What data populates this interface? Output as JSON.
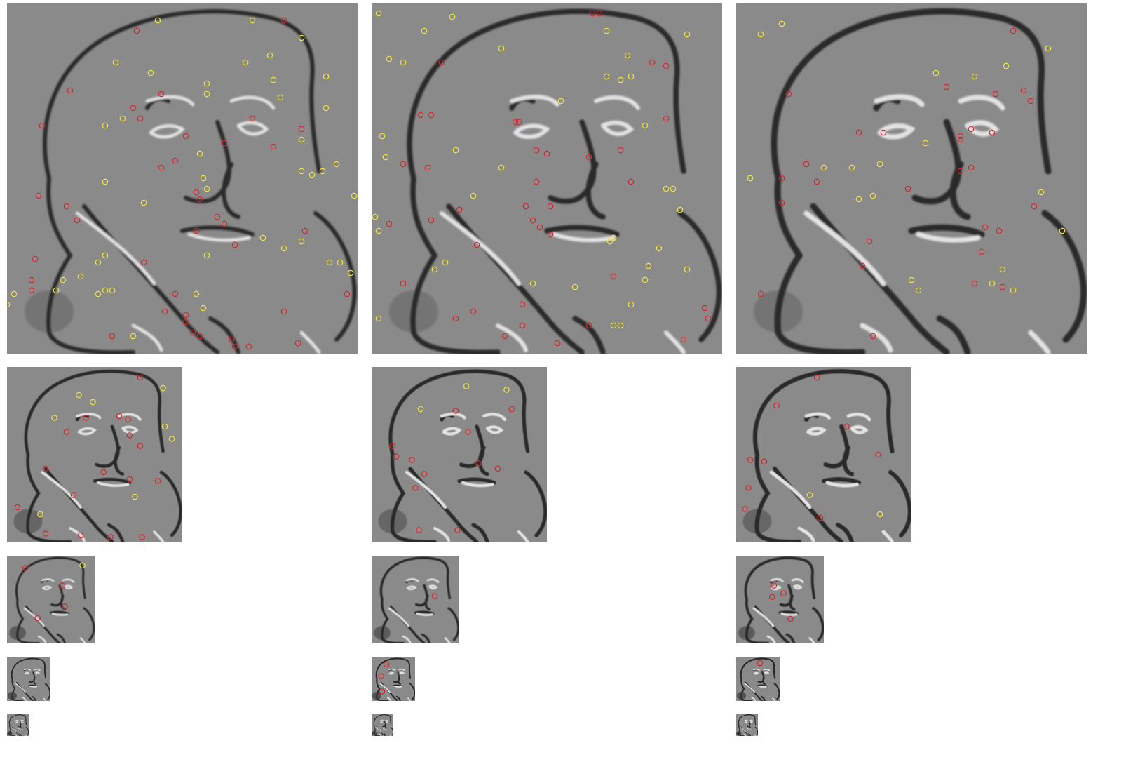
{
  "colors": {
    "background": "#ffffff",
    "tile_gray": "#8a8a8a",
    "edge_dark": "#2a2a2a",
    "edge_light": "#e2e2e2",
    "keypoint_max": "#f2e63a",
    "keypoint_min": "#d8262a"
  },
  "pyramid": {
    "columns": 3,
    "octaves": 5,
    "scale_factor_per_octave": 0.5
  },
  "keypoints": {
    "description_note": "",
    "c0o0": {
      "yellow": [
        [
          0.43,
          0.05
        ],
        [
          0.7,
          0.05
        ],
        [
          0.84,
          0.1
        ],
        [
          0.31,
          0.17
        ],
        [
          0.68,
          0.17
        ],
        [
          0.75,
          0.15
        ],
        [
          0.41,
          0.2
        ],
        [
          0.57,
          0.23
        ],
        [
          0.76,
          0.22
        ],
        [
          0.57,
          0.26
        ],
        [
          0.78,
          0.27
        ],
        [
          0.91,
          0.21
        ],
        [
          0.28,
          0.35
        ],
        [
          0.33,
          0.33
        ],
        [
          0.91,
          0.3
        ],
        [
          0.84,
          0.39
        ],
        [
          0.55,
          0.43
        ],
        [
          0.84,
          0.48
        ],
        [
          0.87,
          0.49
        ],
        [
          0.9,
          0.48
        ],
        [
          0.94,
          0.46
        ],
        [
          0.56,
          0.5
        ],
        [
          0.28,
          0.51
        ],
        [
          0.57,
          0.53
        ],
        [
          0.39,
          0.57
        ],
        [
          0.99,
          0.55
        ],
        [
          0.73,
          0.67
        ],
        [
          0.79,
          0.7
        ],
        [
          0.84,
          0.68
        ],
        [
          0.57,
          0.72
        ],
        [
          0.26,
          0.74
        ],
        [
          0.28,
          0.72
        ],
        [
          0.92,
          0.74
        ],
        [
          0.95,
          0.74
        ],
        [
          0.98,
          0.77
        ],
        [
          0.16,
          0.79
        ],
        [
          0.21,
          0.78
        ],
        [
          0.14,
          0.82
        ],
        [
          0.26,
          0.83
        ],
        [
          0.28,
          0.82
        ],
        [
          0.3,
          0.82
        ],
        [
          0.54,
          0.83
        ],
        [
          0.56,
          0.87
        ],
        [
          0.02,
          0.83
        ],
        [
          0.0,
          0.86
        ],
        [
          0.36,
          0.95
        ]
      ],
      "red": [
        [
          0.37,
          0.08
        ],
        [
          0.79,
          0.05
        ],
        [
          0.18,
          0.25
        ],
        [
          0.44,
          0.26
        ],
        [
          0.36,
          0.3
        ],
        [
          0.38,
          0.33
        ],
        [
          0.1,
          0.35
        ],
        [
          0.51,
          0.38
        ],
        [
          0.7,
          0.33
        ],
        [
          0.84,
          0.36
        ],
        [
          0.62,
          0.4
        ],
        [
          0.76,
          0.41
        ],
        [
          0.48,
          0.45
        ],
        [
          0.44,
          0.47
        ],
        [
          0.54,
          0.54
        ],
        [
          0.55,
          0.56
        ],
        [
          0.09,
          0.55
        ],
        [
          0.17,
          0.58
        ],
        [
          0.2,
          0.62
        ],
        [
          0.6,
          0.61
        ],
        [
          0.62,
          0.63
        ],
        [
          0.54,
          0.65
        ],
        [
          0.85,
          0.65
        ],
        [
          0.65,
          0.69
        ],
        [
          0.39,
          0.74
        ],
        [
          0.08,
          0.73
        ],
        [
          0.07,
          0.79
        ],
        [
          0.07,
          0.82
        ],
        [
          0.48,
          0.83
        ],
        [
          0.97,
          0.83
        ],
        [
          0.45,
          0.88
        ],
        [
          0.51,
          0.89
        ],
        [
          0.51,
          0.91
        ],
        [
          0.53,
          0.94
        ],
        [
          0.55,
          0.95
        ],
        [
          0.79,
          0.88
        ],
        [
          0.3,
          0.95
        ],
        [
          0.64,
          0.96
        ],
        [
          0.65,
          0.98
        ],
        [
          0.69,
          0.98
        ],
        [
          0.83,
          0.97
        ]
      ]
    },
    "c1o0": {
      "yellow": [
        [
          0.02,
          0.03
        ],
        [
          0.23,
          0.04
        ],
        [
          0.15,
          0.08
        ],
        [
          0.67,
          0.08
        ],
        [
          0.9,
          0.09
        ],
        [
          0.37,
          0.13
        ],
        [
          0.73,
          0.15
        ],
        [
          0.05,
          0.16
        ],
        [
          0.09,
          0.17
        ],
        [
          0.67,
          0.21
        ],
        [
          0.71,
          0.22
        ],
        [
          0.74,
          0.21
        ],
        [
          0.54,
          0.28
        ],
        [
          0.78,
          0.35
        ],
        [
          0.03,
          0.38
        ],
        [
          0.04,
          0.44
        ],
        [
          0.24,
          0.42
        ],
        [
          0.37,
          0.47
        ],
        [
          0.29,
          0.55
        ],
        [
          0.84,
          0.53
        ],
        [
          0.86,
          0.53
        ],
        [
          0.88,
          0.59
        ],
        [
          0.01,
          0.61
        ],
        [
          0.02,
          0.65
        ],
        [
          0.68,
          0.68
        ],
        [
          0.69,
          0.67
        ],
        [
          0.82,
          0.7
        ],
        [
          0.18,
          0.76
        ],
        [
          0.21,
          0.74
        ],
        [
          0.79,
          0.75
        ],
        [
          0.9,
          0.76
        ],
        [
          0.46,
          0.8
        ],
        [
          0.58,
          0.81
        ],
        [
          0.78,
          0.79
        ],
        [
          0.74,
          0.86
        ],
        [
          0.02,
          0.9
        ],
        [
          0.69,
          0.92
        ],
        [
          0.71,
          0.92
        ]
      ],
      "red": [
        [
          0.63,
          0.03
        ],
        [
          0.65,
          0.03
        ],
        [
          0.2,
          0.17
        ],
        [
          0.8,
          0.17
        ],
        [
          0.84,
          0.18
        ],
        [
          0.14,
          0.32
        ],
        [
          0.17,
          0.32
        ],
        [
          0.84,
          0.33
        ],
        [
          0.41,
          0.34
        ],
        [
          0.42,
          0.34
        ],
        [
          0.47,
          0.42
        ],
        [
          0.5,
          0.43
        ],
        [
          0.71,
          0.42
        ],
        [
          0.62,
          0.44
        ],
        [
          0.09,
          0.46
        ],
        [
          0.16,
          0.47
        ],
        [
          0.47,
          0.51
        ],
        [
          0.74,
          0.51
        ],
        [
          0.44,
          0.58
        ],
        [
          0.51,
          0.58
        ],
        [
          0.25,
          0.59
        ],
        [
          0.17,
          0.62
        ],
        [
          0.05,
          0.63
        ],
        [
          0.46,
          0.62
        ],
        [
          0.48,
          0.64
        ],
        [
          0.51,
          0.66
        ],
        [
          0.3,
          0.69
        ],
        [
          0.69,
          0.78
        ],
        [
          0.09,
          0.8
        ],
        [
          0.43,
          0.86
        ],
        [
          0.29,
          0.88
        ],
        [
          0.24,
          0.9
        ],
        [
          0.43,
          0.92
        ],
        [
          0.62,
          0.92
        ],
        [
          0.38,
          0.95
        ],
        [
          0.53,
          0.97
        ],
        [
          0.95,
          0.87
        ],
        [
          0.96,
          0.9
        ],
        [
          0.89,
          0.96
        ]
      ]
    },
    "c2o0": {
      "yellow": [
        [
          0.07,
          0.09
        ],
        [
          0.13,
          0.06
        ],
        [
          0.89,
          0.13
        ],
        [
          0.57,
          0.2
        ],
        [
          0.68,
          0.21
        ],
        [
          0.77,
          0.18
        ],
        [
          0.54,
          0.4
        ],
        [
          0.25,
          0.47
        ],
        [
          0.33,
          0.47
        ],
        [
          0.41,
          0.46
        ],
        [
          0.04,
          0.5
        ],
        [
          0.35,
          0.56
        ],
        [
          0.39,
          0.55
        ],
        [
          0.87,
          0.54
        ],
        [
          0.93,
          0.65
        ],
        [
          0.76,
          0.76
        ],
        [
          0.5,
          0.79
        ],
        [
          0.52,
          0.82
        ],
        [
          0.73,
          0.8
        ],
        [
          0.79,
          0.82
        ]
      ],
      "red": [
        [
          0.79,
          0.08
        ],
        [
          0.15,
          0.26
        ],
        [
          0.6,
          0.24
        ],
        [
          0.74,
          0.26
        ],
        [
          0.82,
          0.25
        ],
        [
          0.84,
          0.28
        ],
        [
          0.35,
          0.37
        ],
        [
          0.42,
          0.37
        ],
        [
          0.64,
          0.38
        ],
        [
          0.67,
          0.36
        ],
        [
          0.73,
          0.37
        ],
        [
          0.64,
          0.39
        ],
        [
          0.2,
          0.46
        ],
        [
          0.13,
          0.5
        ],
        [
          0.23,
          0.51
        ],
        [
          0.64,
          0.48
        ],
        [
          0.67,
          0.47
        ],
        [
          0.49,
          0.53
        ],
        [
          0.13,
          0.57
        ],
        [
          0.85,
          0.58
        ],
        [
          0.71,
          0.64
        ],
        [
          0.75,
          0.65
        ],
        [
          0.38,
          0.68
        ],
        [
          0.7,
          0.71
        ],
        [
          0.36,
          0.75
        ],
        [
          0.68,
          0.8
        ],
        [
          0.76,
          0.81
        ],
        [
          0.07,
          0.83
        ],
        [
          0.39,
          0.95
        ]
      ]
    },
    "c0o1": {
      "yellow": [
        [
          0.41,
          0.16
        ],
        [
          0.49,
          0.2
        ],
        [
          0.27,
          0.29
        ],
        [
          0.89,
          0.12
        ],
        [
          0.9,
          0.34
        ],
        [
          0.94,
          0.41
        ],
        [
          0.73,
          0.74
        ],
        [
          0.19,
          0.84
        ]
      ],
      "red": [
        [
          0.76,
          0.06
        ],
        [
          0.45,
          0.29
        ],
        [
          0.64,
          0.28
        ],
        [
          0.69,
          0.3
        ],
        [
          0.34,
          0.37
        ],
        [
          0.7,
          0.39
        ],
        [
          0.76,
          0.45
        ],
        [
          0.22,
          0.58
        ],
        [
          0.55,
          0.6
        ],
        [
          0.7,
          0.64
        ],
        [
          0.86,
          0.65
        ],
        [
          0.38,
          0.73
        ],
        [
          0.06,
          0.8
        ],
        [
          0.22,
          0.95
        ],
        [
          0.42,
          0.96
        ],
        [
          0.59,
          0.97
        ],
        [
          0.77,
          0.97
        ]
      ]
    },
    "c1o1": {
      "yellow": [
        [
          0.54,
          0.11
        ],
        [
          0.77,
          0.13
        ],
        [
          0.28,
          0.24
        ]
      ],
      "red": [
        [
          0.8,
          0.24
        ],
        [
          0.48,
          0.25
        ],
        [
          0.55,
          0.37
        ],
        [
          0.12,
          0.45
        ],
        [
          0.14,
          0.51
        ],
        [
          0.23,
          0.53
        ],
        [
          0.61,
          0.55
        ],
        [
          0.72,
          0.58
        ],
        [
          0.3,
          0.61
        ],
        [
          0.25,
          0.69
        ],
        [
          0.27,
          0.93
        ],
        [
          0.49,
          0.93
        ]
      ]
    },
    "c2o1": {
      "yellow": [
        [
          0.42,
          0.73
        ],
        [
          0.82,
          0.84
        ]
      ],
      "red": [
        [
          0.46,
          0.06
        ],
        [
          0.23,
          0.22
        ],
        [
          0.63,
          0.34
        ],
        [
          0.81,
          0.5
        ],
        [
          0.08,
          0.53
        ],
        [
          0.16,
          0.54
        ],
        [
          0.07,
          0.69
        ],
        [
          0.05,
          0.81
        ],
        [
          0.48,
          0.86
        ]
      ]
    },
    "c0o2": {
      "yellow": [
        [
          0.86,
          0.11
        ]
      ],
      "red": [
        [
          0.21,
          0.14
        ],
        [
          0.63,
          0.34
        ],
        [
          0.66,
          0.58
        ],
        [
          0.35,
          0.71
        ]
      ]
    },
    "c1o2": {
      "yellow": [],
      "red": [
        [
          0.72,
          0.46
        ]
      ]
    },
    "c2o2": {
      "yellow": [],
      "red": [
        [
          0.43,
          0.34
        ],
        [
          0.41,
          0.47
        ],
        [
          0.54,
          0.43
        ],
        [
          0.62,
          0.72
        ]
      ]
    },
    "c0o3": {
      "yellow": [],
      "red": []
    },
    "c1o3": {
      "yellow": [],
      "red": [
        [
          0.34,
          0.16
        ],
        [
          0.22,
          0.43
        ],
        [
          0.24,
          0.78
        ]
      ]
    },
    "c2o3": {
      "yellow": [],
      "red": [
        [
          0.55,
          0.13
        ]
      ]
    },
    "c0o4": {
      "yellow": [],
      "red": []
    },
    "c1o4": {
      "yellow": [],
      "red": []
    },
    "c2o4": {
      "yellow": [],
      "red": []
    }
  }
}
